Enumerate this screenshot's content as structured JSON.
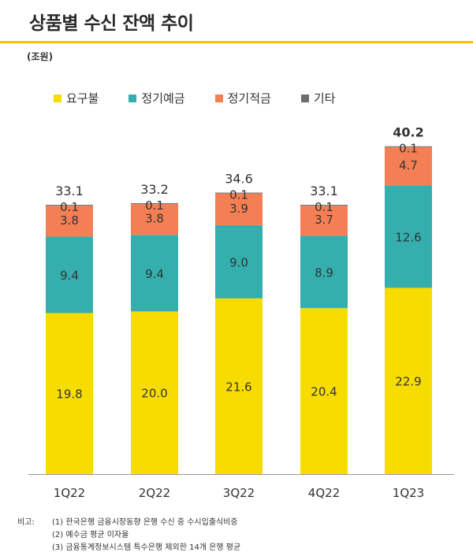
{
  "header": {
    "title": "상품별 수신 잔액 추이",
    "unit": "(조원)"
  },
  "colors": {
    "요구불": "#f7dc00",
    "정기예금": "#35aeae",
    "정기적금": "#f47f55",
    "기타": "#6d6d6d"
  },
  "chart_data": {
    "type": "bar",
    "stacked": true,
    "title": "상품별 수신 잔액 추이",
    "ylabel": "(조원)",
    "ylim": [
      0,
      42.5
    ],
    "legend_position": "top",
    "categories": [
      "1Q22",
      "2Q22",
      "3Q22",
      "4Q22",
      "1Q23"
    ],
    "series": [
      {
        "name": "요구불",
        "values": [
          19.8,
          20.0,
          21.6,
          20.4,
          22.9
        ]
      },
      {
        "name": "정기예금",
        "values": [
          9.4,
          9.4,
          9.0,
          8.9,
          12.6
        ]
      },
      {
        "name": "정기적금",
        "values": [
          3.8,
          3.8,
          3.9,
          3.7,
          4.7
        ]
      },
      {
        "name": "기타",
        "values": [
          0.1,
          0.1,
          0.1,
          0.1,
          0.1
        ]
      }
    ],
    "totals": [
      33.1,
      33.2,
      34.6,
      33.1,
      40.2
    ],
    "value_labels": [
      [
        "19.8",
        "9.4",
        "3.8",
        "0.1"
      ],
      [
        "20.0",
        "9.4",
        "3.8",
        "0.1"
      ],
      [
        "21.6",
        "9.0",
        "3.9",
        "0.1"
      ],
      [
        "20.4",
        "8.9",
        "3.7",
        "0.1"
      ],
      [
        "22.9",
        "12.6",
        "4.7",
        "0.1"
      ]
    ],
    "total_labels": [
      "33.1",
      "33.2",
      "34.6",
      "33.1",
      "40.2"
    ]
  },
  "notes": {
    "label": "비고:",
    "items": [
      "(1) 한국은행 금융시장동향 은행 수신 중 수시입출식비중",
      "(2) 예수금 평균 이자율",
      "(3) 금융통계정보시스템 특수은행 제외한 14개 은행 평균"
    ]
  }
}
